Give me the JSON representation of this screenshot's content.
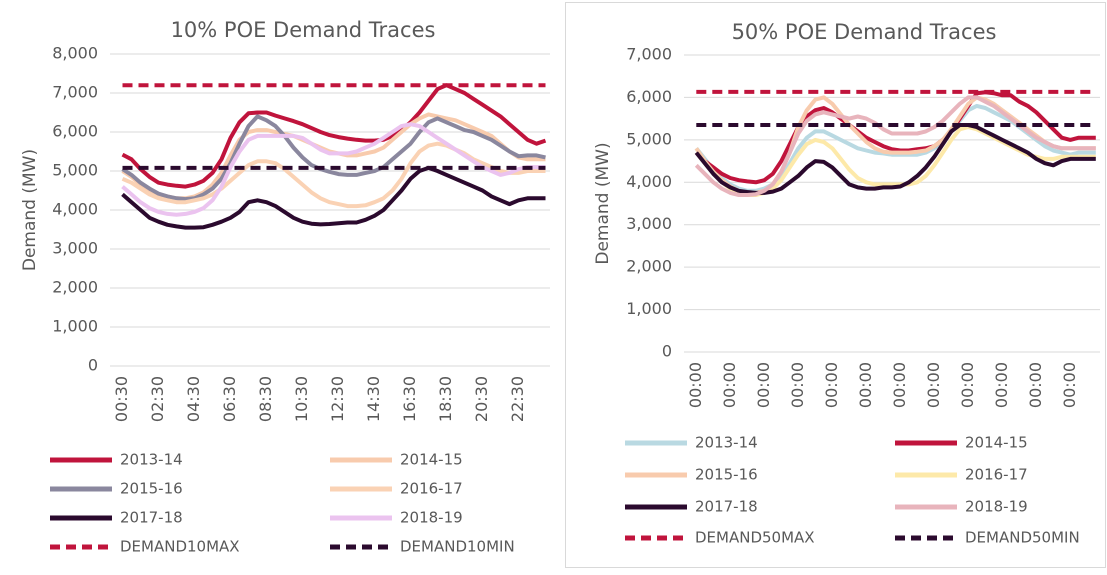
{
  "chart_data": [
    {
      "type": "line",
      "title": "10% POE Demand Traces",
      "y_label": "Demand (MW)",
      "categories": [
        "00:30",
        null,
        null,
        null,
        "02:30",
        null,
        null,
        null,
        "04:30",
        null,
        null,
        null,
        "06:30",
        null,
        null,
        null,
        "08:30",
        null,
        null,
        null,
        "10:30",
        null,
        null,
        null,
        "12:30",
        null,
        null,
        null,
        "14:30",
        null,
        null,
        null,
        "16:30",
        null,
        null,
        null,
        "18:30",
        null,
        null,
        null,
        "20:30",
        null,
        null,
        null,
        "22:30",
        null,
        null,
        null
      ],
      "ylim": [
        0,
        8000
      ],
      "yticks": [
        0,
        {
          "value": 1000,
          "label": "1,000"
        },
        {
          "value": 2000,
          "label": "2,000"
        },
        {
          "value": 3000,
          "label": "3,000"
        },
        {
          "value": 4000,
          "label": "4,000"
        },
        {
          "value": 5000,
          "label": "5,000"
        },
        {
          "value": 6000,
          "label": "6,000"
        },
        {
          "value": 7000,
          "label": "7,000"
        },
        {
          "value": 8000,
          "label": "8,000"
        }
      ],
      "grid": true,
      "series": [
        {
          "name": "2013-14",
          "color": "#c0143c",
          "values": [
            5420,
            5300,
            5050,
            4850,
            4700,
            4650,
            4620,
            4600,
            4650,
            4750,
            4950,
            5300,
            5850,
            6250,
            6480,
            6500,
            6500,
            6420,
            6350,
            6280,
            6200,
            6100,
            6000,
            5920,
            5870,
            5830,
            5800,
            5780,
            5780,
            5800,
            5900,
            6050,
            6250,
            6500,
            6800,
            7100,
            7200,
            7100,
            7000,
            6850,
            6700,
            6550,
            6400,
            6200,
            6000,
            5800,
            5700,
            5780
          ]
        },
        {
          "name": "2014-15",
          "color": "#f8cbad",
          "values": [
            5000,
            4850,
            4650,
            4500,
            4400,
            4350,
            4300,
            4300,
            4350,
            4450,
            4650,
            4950,
            5400,
            5800,
            6000,
            6050,
            6050,
            6000,
            5950,
            5900,
            5800,
            5700,
            5600,
            5500,
            5450,
            5400,
            5400,
            5450,
            5500,
            5600,
            5800,
            6000,
            6200,
            6350,
            6450,
            6400,
            6350,
            6300,
            6200,
            6100,
            6000,
            5900,
            5700,
            5500,
            5350,
            5300,
            5300,
            5300
          ]
        },
        {
          "name": "2015-16",
          "color": "#8a879e",
          "values": [
            5050,
            4900,
            4700,
            4550,
            4420,
            4350,
            4300,
            4280,
            4300,
            4400,
            4550,
            4800,
            5200,
            5700,
            6150,
            6400,
            6300,
            6150,
            5900,
            5600,
            5350,
            5150,
            5050,
            4980,
            4920,
            4900,
            4900,
            4950,
            5000,
            5100,
            5300,
            5500,
            5700,
            6000,
            6250,
            6350,
            6250,
            6150,
            6050,
            6000,
            5900,
            5800,
            5650,
            5500,
            5380,
            5400,
            5400,
            5350
          ]
        },
        {
          "name": "2016-17",
          "color": "#fad2b4",
          "values": [
            4800,
            4700,
            4550,
            4400,
            4300,
            4250,
            4200,
            4200,
            4250,
            4300,
            4400,
            4550,
            4750,
            4950,
            5150,
            5250,
            5250,
            5200,
            5050,
            4850,
            4650,
            4450,
            4300,
            4200,
            4150,
            4100,
            4100,
            4120,
            4200,
            4300,
            4500,
            4800,
            5200,
            5500,
            5650,
            5700,
            5650,
            5550,
            5450,
            5300,
            5200,
            5100,
            5000,
            4950,
            4950,
            5000,
            5000,
            5000
          ]
        },
        {
          "name": "2017-18",
          "color": "#2b0a2e",
          "values": [
            4400,
            4200,
            4000,
            3800,
            3700,
            3620,
            3580,
            3550,
            3550,
            3560,
            3620,
            3700,
            3800,
            3950,
            4200,
            4250,
            4200,
            4100,
            3950,
            3800,
            3700,
            3650,
            3630,
            3640,
            3660,
            3680,
            3680,
            3750,
            3850,
            4000,
            4250,
            4500,
            4800,
            5000,
            5080,
            5000,
            4900,
            4800,
            4700,
            4600,
            4500,
            4350,
            4250,
            4150,
            4250,
            4300,
            4300,
            4300
          ]
        },
        {
          "name": "2018-19",
          "color": "#ebc3ef",
          "values": [
            4600,
            4400,
            4200,
            4050,
            3950,
            3900,
            3880,
            3900,
            3950,
            4050,
            4250,
            4600,
            5100,
            5500,
            5800,
            5900,
            5900,
            5900,
            5900,
            5900,
            5850,
            5700,
            5550,
            5450,
            5450,
            5450,
            5500,
            5600,
            5700,
            5850,
            6000,
            6150,
            6200,
            6150,
            6000,
            5850,
            5700,
            5550,
            5400,
            5250,
            5100,
            5000,
            4900,
            4950,
            5050,
            5100,
            5100,
            5100
          ]
        },
        {
          "name": "DEMAND10MAX",
          "color": "#c0143c",
          "dashed": true,
          "values": [
            7200,
            7200,
            7200,
            7200,
            7200,
            7200,
            7200,
            7200,
            7200,
            7200,
            7200,
            7200,
            7200,
            7200,
            7200,
            7200,
            7200,
            7200,
            7200,
            7200,
            7200,
            7200,
            7200,
            7200,
            7200,
            7200,
            7200,
            7200,
            7200,
            7200,
            7200,
            7200,
            7200,
            7200,
            7200,
            7200,
            7200,
            7200,
            7200,
            7200,
            7200,
            7200,
            7200,
            7200,
            7200,
            7200,
            7200,
            7200
          ]
        },
        {
          "name": "DEMAND10MIN",
          "color": "#2b0a2e",
          "dashed": true,
          "values": [
            5080,
            5080,
            5080,
            5080,
            5080,
            5080,
            5080,
            5080,
            5080,
            5080,
            5080,
            5080,
            5080,
            5080,
            5080,
            5080,
            5080,
            5080,
            5080,
            5080,
            5080,
            5080,
            5080,
            5080,
            5080,
            5080,
            5080,
            5080,
            5080,
            5080,
            5080,
            5080,
            5080,
            5080,
            5080,
            5080,
            5080,
            5080,
            5080,
            5080,
            5080,
            5080,
            5080,
            5080,
            5080,
            5080,
            5080,
            5080
          ]
        }
      ]
    },
    {
      "type": "line",
      "title": "50% POE Demand Traces",
      "y_label": "Demand (MW)",
      "categories": [
        "00:00",
        null,
        null,
        null,
        "00:00",
        null,
        null,
        null,
        "00:00",
        null,
        null,
        null,
        "00:00",
        null,
        null,
        null,
        "00:00",
        null,
        null,
        null,
        "00:00",
        null,
        null,
        null,
        "00:00",
        null,
        null,
        null,
        "00:00",
        null,
        null,
        null,
        "00:00",
        null,
        null,
        null,
        "00:00",
        null,
        null,
        null,
        "00:00",
        null,
        null,
        null,
        "00:00",
        null,
        null,
        null
      ],
      "ylim": [
        0,
        7000
      ],
      "yticks": [
        0,
        {
          "value": 1000,
          "label": "1,000"
        },
        {
          "value": 2000,
          "label": "2,000"
        },
        {
          "value": 3000,
          "label": "3,000"
        },
        {
          "value": 4000,
          "label": "4,000"
        },
        {
          "value": 5000,
          "label": "5,000"
        },
        {
          "value": 6000,
          "label": "6,000"
        },
        {
          "value": 7000,
          "label": "7,000"
        }
      ],
      "grid": true,
      "series": [
        {
          "name": "2013-14",
          "color": "#b9d9e2",
          "values": [
            4800,
            4550,
            4300,
            4100,
            3950,
            3850,
            3800,
            3800,
            3850,
            3950,
            4150,
            4450,
            4800,
            5050,
            5200,
            5200,
            5100,
            5000,
            4900,
            4800,
            4750,
            4700,
            4680,
            4650,
            4650,
            4650,
            4650,
            4700,
            4800,
            4950,
            5200,
            5450,
            5700,
            5800,
            5750,
            5650,
            5550,
            5450,
            5300,
            5150,
            5000,
            4850,
            4750,
            4700,
            4650,
            4700,
            4700,
            4700
          ]
        },
        {
          "name": "2014-15",
          "color": "#c0143c",
          "values": [
            4700,
            4500,
            4350,
            4200,
            4100,
            4050,
            4020,
            4000,
            4050,
            4200,
            4500,
            4900,
            5300,
            5550,
            5700,
            5750,
            5650,
            5500,
            5350,
            5200,
            5050,
            4950,
            4850,
            4780,
            4750,
            4750,
            4780,
            4800,
            4850,
            5000,
            5200,
            5500,
            5800,
            6100,
            6120,
            6100,
            6050,
            6050,
            5900,
            5800,
            5650,
            5450,
            5250,
            5050,
            5000,
            5050,
            5050,
            5050
          ]
        },
        {
          "name": "2015-16",
          "color": "#f8cbad",
          "values": [
            4800,
            4500,
            4250,
            4050,
            3900,
            3800,
            3750,
            3750,
            3800,
            3950,
            4250,
            4700,
            5300,
            5700,
            5950,
            6000,
            5850,
            5600,
            5350,
            5150,
            4950,
            4800,
            4720,
            4700,
            4700,
            4700,
            4720,
            4750,
            4850,
            5000,
            5250,
            5550,
            5850,
            6000,
            5950,
            5850,
            5700,
            5550,
            5400,
            5250,
            5100,
            4950,
            4850,
            4800,
            4800,
            4800,
            4800,
            4800
          ]
        },
        {
          "name": "2016-17",
          "color": "#fde9a9",
          "values": [
            4700,
            4450,
            4200,
            4000,
            3850,
            3750,
            3700,
            3700,
            3750,
            3850,
            4050,
            4350,
            4650,
            4900,
            5000,
            4950,
            4800,
            4550,
            4300,
            4100,
            4000,
            3950,
            3950,
            3950,
            3950,
            3950,
            4000,
            4150,
            4400,
            4700,
            5000,
            5250,
            5300,
            5250,
            5150,
            5050,
            4950,
            4850,
            4750,
            4650,
            4600,
            4550,
            4550,
            4600,
            4600,
            4600,
            4600,
            4600
          ]
        },
        {
          "name": "2017-18",
          "color": "#2b0a2e",
          "values": [
            4700,
            4450,
            4200,
            4000,
            3880,
            3800,
            3770,
            3750,
            3750,
            3780,
            3850,
            4000,
            4150,
            4350,
            4500,
            4480,
            4350,
            4150,
            3950,
            3880,
            3850,
            3850,
            3880,
            3880,
            3900,
            4000,
            4150,
            4350,
            4600,
            4900,
            5200,
            5350,
            5350,
            5300,
            5200,
            5100,
            5000,
            4900,
            4800,
            4700,
            4550,
            4450,
            4400,
            4500,
            4550,
            4550,
            4550,
            4550
          ]
        },
        {
          "name": "2018-19",
          "color": "#e8b4bc",
          "values": [
            4400,
            4200,
            4000,
            3850,
            3750,
            3700,
            3700,
            3720,
            3800,
            3950,
            4250,
            4700,
            5150,
            5450,
            5600,
            5650,
            5600,
            5550,
            5500,
            5550,
            5500,
            5400,
            5250,
            5150,
            5150,
            5150,
            5150,
            5200,
            5300,
            5450,
            5650,
            5850,
            6000,
            6000,
            5900,
            5800,
            5650,
            5500,
            5350,
            5200,
            5050,
            4950,
            4850,
            4800,
            4800,
            4800,
            4800,
            4800
          ]
        },
        {
          "name": "DEMAND50MAX",
          "color": "#c0143c",
          "dashed": true,
          "values": [
            6130,
            6130,
            6130,
            6130,
            6130,
            6130,
            6130,
            6130,
            6130,
            6130,
            6130,
            6130,
            6130,
            6130,
            6130,
            6130,
            6130,
            6130,
            6130,
            6130,
            6130,
            6130,
            6130,
            6130,
            6130,
            6130,
            6130,
            6130,
            6130,
            6130,
            6130,
            6130,
            6130,
            6130,
            6130,
            6130,
            6130,
            6130,
            6130,
            6130,
            6130,
            6130,
            6130,
            6130,
            6130,
            6130,
            6130,
            6130
          ]
        },
        {
          "name": "DEMAND50MIN",
          "color": "#2b0a2e",
          "dashed": true,
          "values": [
            5350,
            5350,
            5350,
            5350,
            5350,
            5350,
            5350,
            5350,
            5350,
            5350,
            5350,
            5350,
            5350,
            5350,
            5350,
            5350,
            5350,
            5350,
            5350,
            5350,
            5350,
            5350,
            5350,
            5350,
            5350,
            5350,
            5350,
            5350,
            5350,
            5350,
            5350,
            5350,
            5350,
            5350,
            5350,
            5350,
            5350,
            5350,
            5350,
            5350,
            5350,
            5350,
            5350,
            5350,
            5350,
            5350,
            5350,
            5350
          ]
        }
      ]
    }
  ]
}
